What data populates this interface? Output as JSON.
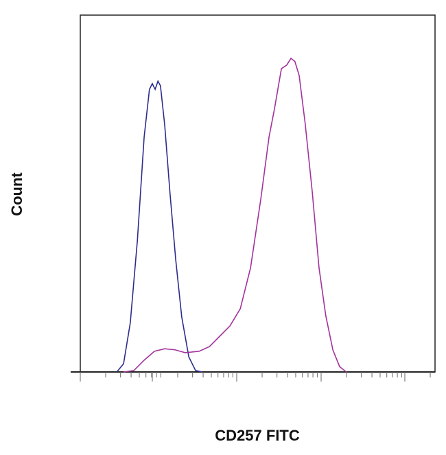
{
  "chart_data": {
    "type": "line",
    "title": "",
    "xlabel": "CD257 FITC",
    "ylabel": "Count",
    "x_scale": "log",
    "xlim": [
      0,
      100
    ],
    "ylim": [
      0,
      100
    ],
    "grid": false,
    "legend": "none",
    "series": [
      {
        "color": "#2b2d8c",
        "x": [
          10.3,
          12.2,
          14.1,
          16.1,
          18.0,
          19.5,
          20.3,
          21.1,
          21.9,
          22.6,
          23.8,
          25.3,
          26.9,
          28.6,
          30.6,
          32.5,
          34.4
        ],
        "y": [
          0,
          2.3,
          13.8,
          36.9,
          65.8,
          79.2,
          80.8,
          79.2,
          81.5,
          80.2,
          69.2,
          50,
          31.5,
          15.4,
          4.2,
          0.4,
          0
        ]
      },
      {
        "color": "#a3329c",
        "x": [
          12.2,
          15.1,
          18.0,
          20.9,
          23.8,
          26.7,
          29.6,
          33.5,
          36.4,
          39.3,
          42.2,
          45.1,
          48.0,
          50.9,
          53.2,
          54.7,
          56.7,
          58.2,
          59.4,
          60.5,
          61.7,
          63.4,
          65.4,
          67.3,
          69.2,
          71.2,
          73.1,
          75.0
        ],
        "y": [
          0,
          0.4,
          3.3,
          5.8,
          6.5,
          6.2,
          5.4,
          5.8,
          7.1,
          10,
          12.9,
          17.7,
          29.2,
          48.5,
          65.8,
          73.5,
          85,
          86,
          87.9,
          87,
          83.1,
          69.6,
          50.4,
          29.2,
          15.8,
          6.2,
          1.5,
          0
        ]
      }
    ]
  }
}
